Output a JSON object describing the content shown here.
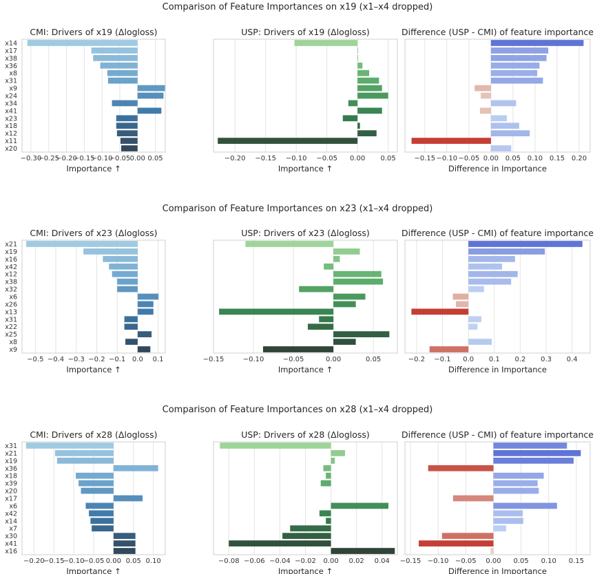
{
  "figure": {
    "row_titles": [
      "Comparison of Feature Importances on x19 (x1–x4 dropped)",
      "Comparison of Feature Importances on x23 (x1–x4 dropped)",
      "Comparison of Feature Importances on x28 (x1–x4 dropped)"
    ]
  },
  "chart_data": [
    {
      "type": "bar",
      "orientation": "horizontal",
      "palette": "blues",
      "title": "CMI: Drivers of x19 (Δlogloss)",
      "xlabel": "Importance ↑",
      "categories": [
        "x14",
        "x17",
        "x38",
        "x36",
        "x8",
        "x31",
        "x9",
        "x24",
        "x34",
        "x41",
        "x23",
        "x18",
        "x12",
        "x11",
        "x20"
      ],
      "values": [
        -0.31,
        -0.13,
        -0.125,
        -0.105,
        -0.085,
        -0.083,
        0.077,
        0.073,
        -0.072,
        0.067,
        -0.06,
        -0.06,
        -0.058,
        -0.048,
        -0.046
      ],
      "xlim": [
        -0.325,
        0.078
      ],
      "xticks": [
        -0.3,
        -0.25,
        -0.2,
        -0.15,
        -0.1,
        -0.05,
        0.0,
        0.05
      ],
      "xticklabels": [
        "−0.30",
        "−0.25",
        "−0.20",
        "−0.15",
        "−0.10",
        "−0.05",
        "0.00",
        "0.05"
      ],
      "grid": "vertical",
      "show_yticklabels": true
    },
    {
      "type": "bar",
      "orientation": "horizontal",
      "palette": "greens",
      "title": "USP: Drivers of x19 (Δlogloss)",
      "xlabel": "Importance ↑",
      "categories": [
        "x14",
        "x17",
        "x38",
        "x36",
        "x8",
        "x31",
        "x9",
        "x24",
        "x34",
        "x41",
        "x23",
        "x18",
        "x12",
        "x11",
        "x20"
      ],
      "values": [
        -0.103,
        0.001,
        0.001,
        0.008,
        0.019,
        0.035,
        0.04,
        0.05,
        -0.015,
        0.04,
        -0.024,
        0.004,
        0.031,
        -0.228,
        0.0
      ],
      "xlim": [
        -0.235,
        0.065
      ],
      "xticks": [
        -0.2,
        -0.15,
        -0.1,
        -0.05,
        0.0,
        0.05
      ],
      "xticklabels": [
        "−0.20",
        "−0.15",
        "−0.10",
        "−0.05",
        "0.00",
        "0.05"
      ],
      "grid": "vertical",
      "show_yticklabels": false
    },
    {
      "type": "bar",
      "orientation": "horizontal",
      "palette": "diverging",
      "title": "Difference (USP - CMI) of feature importance",
      "xlabel": "Difference in Importance",
      "categories": [
        "x14",
        "x17",
        "x38",
        "x36",
        "x8",
        "x31",
        "x9",
        "x24",
        "x34",
        "x41",
        "x23",
        "x18",
        "x12",
        "x11",
        "x20"
      ],
      "values": [
        0.21,
        0.13,
        0.126,
        0.11,
        0.105,
        0.118,
        -0.037,
        -0.023,
        0.057,
        -0.025,
        0.036,
        0.064,
        0.088,
        -0.18,
        0.046
      ],
      "xlim": [
        -0.195,
        0.225
      ],
      "xticks": [
        -0.15,
        -0.1,
        -0.05,
        0.0,
        0.05,
        0.1,
        0.15,
        0.2
      ],
      "xticklabels": [
        "−0.15",
        "−0.10",
        "−0.05",
        "0.00",
        "0.05",
        "0.10",
        "0.15",
        "0.20"
      ],
      "grid": "vertical",
      "show_yticklabels": false
    },
    {
      "type": "bar",
      "orientation": "horizontal",
      "palette": "blues",
      "title": "CMI: Drivers of x23 (Δlogloss)",
      "xlabel": "Importance ↑",
      "categories": [
        "x21",
        "x19",
        "x16",
        "x42",
        "x12",
        "x38",
        "x32",
        "x6",
        "x26",
        "x13",
        "x31",
        "x22",
        "x25",
        "x8",
        "x9"
      ],
      "values": [
        -0.545,
        -0.265,
        -0.17,
        -0.14,
        -0.125,
        -0.1,
        -0.1,
        0.102,
        0.077,
        0.077,
        -0.065,
        -0.065,
        0.068,
        -0.06,
        0.062
      ],
      "xlim": [
        -0.565,
        0.135
      ],
      "xticks": [
        -0.5,
        -0.4,
        -0.3,
        -0.2,
        -0.1,
        0.0,
        0.1
      ],
      "xticklabels": [
        "−0.5",
        "−0.4",
        "−0.3",
        "−0.2",
        "−0.1",
        "0.0",
        "0.1"
      ],
      "grid": "vertical",
      "show_yticklabels": true
    },
    {
      "type": "bar",
      "orientation": "horizontal",
      "palette": "greens",
      "title": "USP: Drivers of x23 (Δlogloss)",
      "xlabel": "Importance ↑",
      "categories": [
        "x21",
        "x19",
        "x16",
        "x42",
        "x12",
        "x38",
        "x32",
        "x6",
        "x26",
        "x13",
        "x31",
        "x22",
        "x25",
        "x8",
        "x9"
      ],
      "values": [
        -0.11,
        0.033,
        0.008,
        -0.012,
        0.06,
        0.062,
        -0.043,
        0.04,
        0.028,
        -0.143,
        -0.018,
        -0.032,
        0.07,
        0.028,
        -0.088
      ],
      "xlim": [
        -0.15,
        0.08
      ],
      "xticks": [
        -0.15,
        -0.1,
        -0.05,
        0.0,
        0.05
      ],
      "xticklabels": [
        "−0.15",
        "−0.10",
        "−0.05",
        "0.00",
        "0.05"
      ],
      "grid": "vertical",
      "show_yticklabels": false
    },
    {
      "type": "bar",
      "orientation": "horizontal",
      "palette": "diverging",
      "title": "Difference (USP - CMI) of feature importance",
      "xlabel": "Difference in Importance",
      "categories": [
        "x21",
        "x19",
        "x16",
        "x42",
        "x12",
        "x38",
        "x32",
        "x6",
        "x26",
        "x13",
        "x31",
        "x22",
        "x25",
        "x8",
        "x9"
      ],
      "values": [
        0.44,
        0.295,
        0.18,
        0.13,
        0.19,
        0.165,
        0.06,
        -0.06,
        -0.048,
        -0.22,
        0.05,
        0.035,
        0.0,
        0.09,
        -0.15
      ],
      "xlim": [
        -0.245,
        0.47
      ],
      "xticks": [
        -0.2,
        -0.1,
        0.0,
        0.1,
        0.2,
        0.3,
        0.4
      ],
      "xticklabels": [
        "−0.2",
        "−0.1",
        "0.0",
        "0.1",
        "0.2",
        "0.3",
        "0.4"
      ],
      "grid": "vertical",
      "show_yticklabels": false
    },
    {
      "type": "bar",
      "orientation": "horizontal",
      "palette": "blues",
      "title": "CMI: Drivers of x28 (Δlogloss)",
      "xlabel": "Importance ↑",
      "categories": [
        "x31",
        "x21",
        "x19",
        "x36",
        "x18",
        "x39",
        "x20",
        "x17",
        "x6",
        "x42",
        "x14",
        "x7",
        "x30",
        "x41",
        "x16"
      ],
      "values": [
        -0.22,
        -0.147,
        -0.142,
        0.112,
        -0.095,
        -0.088,
        -0.082,
        0.073,
        -0.07,
        -0.062,
        -0.058,
        -0.055,
        0.055,
        0.055,
        0.055
      ],
      "xlim": [
        -0.23,
        0.13
      ],
      "xticks": [
        -0.2,
        -0.15,
        -0.1,
        -0.05,
        0.0,
        0.05,
        0.1
      ],
      "xticklabels": [
        "−0.20",
        "−0.15",
        "−0.10",
        "−0.05",
        "0.00",
        "0.05",
        "0.10"
      ],
      "grid": "vertical",
      "show_yticklabels": true
    },
    {
      "type": "bar",
      "orientation": "horizontal",
      "palette": "greens",
      "title": "USP: Drivers of x28 (Δlogloss)",
      "xlabel": "Importance ↑",
      "categories": [
        "x31",
        "x21",
        "x19",
        "x36",
        "x18",
        "x39",
        "x20",
        "x17",
        "x6",
        "x42",
        "x14",
        "x7",
        "x30",
        "x41",
        "x16"
      ],
      "values": [
        -0.087,
        0.011,
        0.003,
        -0.006,
        -0.004,
        -0.008,
        0.0,
        0.0,
        0.045,
        -0.009,
        -0.004,
        -0.032,
        -0.038,
        -0.08,
        0.05
      ],
      "xlim": [
        -0.092,
        0.052
      ],
      "xticks": [
        -0.08,
        -0.06,
        -0.04,
        -0.02,
        0.0,
        0.02,
        0.04
      ],
      "xticklabels": [
        "−0.08",
        "−0.06",
        "−0.04",
        "−0.02",
        "0.00",
        "0.02",
        "0.04"
      ],
      "grid": "vertical",
      "show_yticklabels": false
    },
    {
      "type": "bar",
      "orientation": "horizontal",
      "palette": "diverging",
      "title": "Difference (USP - CMI) of feature importance",
      "xlabel": "Difference in Importance",
      "categories": [
        "x31",
        "x21",
        "x19",
        "x36",
        "x18",
        "x39",
        "x20",
        "x17",
        "x6",
        "x42",
        "x14",
        "x7",
        "x30",
        "x41",
        "x16"
      ],
      "values": [
        0.133,
        0.158,
        0.145,
        -0.118,
        0.091,
        0.08,
        0.082,
        -0.073,
        0.115,
        0.053,
        0.054,
        0.023,
        -0.093,
        -0.135,
        -0.005
      ],
      "xlim": [
        -0.16,
        0.175
      ],
      "xticks": [
        -0.15,
        -0.1,
        -0.05,
        0.0,
        0.05,
        0.1,
        0.15
      ],
      "xticklabels": [
        "−0.15",
        "−0.10",
        "−0.05",
        "0.00",
        "0.05",
        "0.10",
        "0.15"
      ],
      "grid": "vertical",
      "show_yticklabels": false
    }
  ]
}
